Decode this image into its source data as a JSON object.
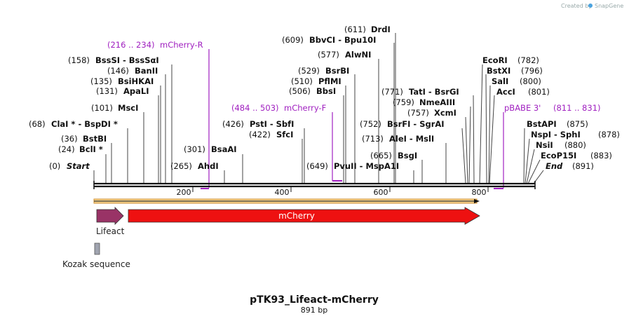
{
  "title": "pTK93_Lifeact-mCherry",
  "length_label": "891 bp",
  "credit": {
    "prefix": "Created by",
    "brand": "SnapGene"
  },
  "ruler": {
    "ticks": [
      "200",
      "400",
      "600",
      "800"
    ]
  },
  "sites": [
    {
      "pos": "(0)",
      "name": "Start",
      "italic": true
    },
    {
      "pos": "(24)",
      "name": "BclI *"
    },
    {
      "pos": "(36)",
      "name": "BstBI"
    },
    {
      "pos": "(68)",
      "name": "ClaI *  -  BspDI *"
    },
    {
      "pos": "(101)",
      "name": "MscI"
    },
    {
      "pos": "(131)",
      "name": "ApaLI"
    },
    {
      "pos": "(135)",
      "name": "BsiHKAI"
    },
    {
      "pos": "(146)",
      "name": "BanII"
    },
    {
      "pos": "(158)",
      "name": "BssSI  -  BssSαI"
    },
    {
      "pos": "(265)",
      "name": "AhdI"
    },
    {
      "pos": "(301)",
      "name": "BsaAI"
    },
    {
      "pos": "(422)",
      "name": "SfcI"
    },
    {
      "pos": "(426)",
      "name": "PstI  -  SbfI"
    },
    {
      "pos": "(506)",
      "name": "BbsI"
    },
    {
      "pos": "(510)",
      "name": "PflMI"
    },
    {
      "pos": "(529)",
      "name": "BsrBI"
    },
    {
      "pos": "(577)",
      "name": "AlwNI"
    },
    {
      "pos": "(609)",
      "name": "BbvCI  -  Bpu10I"
    },
    {
      "pos": "(611)",
      "name": "DrdI"
    },
    {
      "pos": "(649)",
      "name": "PvuII  -  MspA1I"
    },
    {
      "pos": "(665)",
      "name": "BsgI"
    },
    {
      "pos": "(713)",
      "name": "AleI  -  MslI"
    },
    {
      "pos": "(752)",
      "name": "BsrFI  -  SgrAI"
    },
    {
      "pos": "(757)",
      "name": "XcmI"
    },
    {
      "pos": "(759)",
      "name": "NmeAIII"
    },
    {
      "pos": "(771)",
      "name": "TatI  -  BsrGI"
    },
    {
      "pos": "(782)",
      "name": "EcoRI"
    },
    {
      "pos": "(796)",
      "name": "BstXI"
    },
    {
      "pos": "(800)",
      "name": "SalI"
    },
    {
      "pos": "(801)",
      "name": "AccI"
    },
    {
      "pos": "(875)",
      "name": "BstAPI"
    },
    {
      "pos": "(878)",
      "name": "NspI  -  SphI"
    },
    {
      "pos": "(880)",
      "name": "NsiI"
    },
    {
      "pos": "(883)",
      "name": "EcoP15I"
    },
    {
      "pos": "(891)",
      "name": "End",
      "italic": true
    }
  ],
  "primers": [
    {
      "range": "(216 .. 234)",
      "name": "mCherry-R"
    },
    {
      "range": "(484 .. 503)",
      "name": "mCherry-F"
    },
    {
      "range": "(811 .. 831)",
      "name": "pBABE 3'"
    }
  ],
  "features": [
    {
      "name": "Lifeact",
      "color": "#993366"
    },
    {
      "name": "mCherry",
      "color": "#ee1111"
    },
    {
      "name": "Kozak sequence",
      "color": "#a0a4b0"
    }
  ],
  "colors": {
    "primer": "#a020c0",
    "orf": "#e8b060",
    "backbone": "#111111"
  }
}
